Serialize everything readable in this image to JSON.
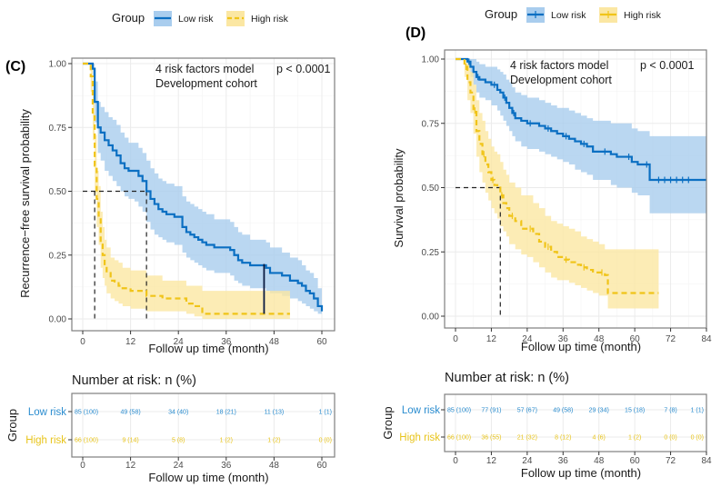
{
  "colors": {
    "low_line": "#0b6fc2",
    "low_band": "#a9cdee",
    "high_line": "#f0c419",
    "high_band": "#fbe7a3",
    "low_text": "#2a8ccf",
    "high_text": "#e8c41b",
    "grid": "#ebebeb",
    "frame": "#7f7f7f"
  },
  "chart_data": [
    {
      "id": "C",
      "type": "line",
      "panel_label": "(C)",
      "title": "",
      "legend": {
        "title": "Group",
        "entries": [
          "Low risk",
          "High risk"
        ],
        "placement": "top"
      },
      "annotation_model": "4 risk factors model",
      "annotation_cohort": "Development cohort",
      "p_value": "p < 0.0001",
      "xlabel": "Follow up time (month)",
      "ylabel": "Recurrence−free survival probability",
      "xlim": [
        0,
        60
      ],
      "ylim": [
        0,
        1
      ],
      "xticks": [
        0,
        12,
        24,
        36,
        48,
        60
      ],
      "yticks": [
        0,
        0.25,
        0.5,
        0.75,
        1.0
      ],
      "ytick_labels": [
        "0.00",
        "0.25",
        "0.50",
        "0.75",
        "1.00"
      ],
      "median_lines": [
        3,
        16
      ],
      "series": [
        {
          "name": "Low risk",
          "style": "solid",
          "x": [
            0,
            1.5,
            2.5,
            3,
            3.8,
            4.5,
            5.5,
            6.5,
            7.5,
            8.5,
            9.5,
            10.5,
            11.5,
            13,
            14,
            15,
            16,
            17,
            18,
            19,
            20,
            21,
            23,
            24,
            25,
            26,
            27,
            28,
            29,
            30,
            31,
            33,
            35,
            36,
            37,
            38,
            39,
            40,
            42,
            44,
            46,
            47,
            48,
            50,
            52,
            54,
            55,
            56,
            57,
            58,
            59,
            60
          ],
          "y": [
            1.0,
            1.0,
            0.98,
            0.85,
            0.75,
            0.73,
            0.7,
            0.68,
            0.66,
            0.64,
            0.61,
            0.59,
            0.58,
            0.58,
            0.56,
            0.54,
            0.5,
            0.47,
            0.45,
            0.43,
            0.42,
            0.41,
            0.4,
            0.4,
            0.36,
            0.34,
            0.33,
            0.32,
            0.31,
            0.3,
            0.29,
            0.28,
            0.28,
            0.28,
            0.27,
            0.25,
            0.23,
            0.22,
            0.21,
            0.21,
            0.2,
            0.18,
            0.18,
            0.17,
            0.15,
            0.14,
            0.13,
            0.11,
            0.1,
            0.08,
            0.05,
            0.03
          ],
          "lower": [
            1.0,
            1.0,
            0.95,
            0.77,
            0.65,
            0.62,
            0.58,
            0.56,
            0.54,
            0.52,
            0.5,
            0.48,
            0.47,
            0.46,
            0.44,
            0.42,
            0.38,
            0.35,
            0.33,
            0.32,
            0.31,
            0.3,
            0.29,
            0.29,
            0.26,
            0.24,
            0.23,
            0.22,
            0.21,
            0.2,
            0.19,
            0.18,
            0.18,
            0.18,
            0.17,
            0.15,
            0.14,
            0.13,
            0.12,
            0.12,
            0.11,
            0.1,
            0.1,
            0.09,
            0.08,
            0.07,
            0.06,
            0.05,
            0.04,
            0.03,
            0.02,
            0.01
          ],
          "upper": [
            1.0,
            1.0,
            1.0,
            0.93,
            0.85,
            0.83,
            0.81,
            0.79,
            0.78,
            0.76,
            0.73,
            0.71,
            0.69,
            0.69,
            0.67,
            0.65,
            0.62,
            0.59,
            0.57,
            0.55,
            0.54,
            0.53,
            0.52,
            0.52,
            0.48,
            0.46,
            0.45,
            0.44,
            0.43,
            0.42,
            0.41,
            0.39,
            0.39,
            0.39,
            0.38,
            0.36,
            0.34,
            0.33,
            0.31,
            0.31,
            0.3,
            0.28,
            0.28,
            0.26,
            0.24,
            0.23,
            0.21,
            0.19,
            0.18,
            0.16,
            0.12,
            0.08
          ]
        },
        {
          "name": "High risk",
          "style": "dashed",
          "x": [
            0,
            1.5,
            2,
            2.5,
            3,
            3.5,
            4,
            4.5,
            5,
            5.5,
            6,
            7,
            8,
            9,
            10,
            12,
            14,
            16,
            18,
            20,
            22,
            24,
            26,
            28,
            30,
            52
          ],
          "y": [
            1.0,
            1.0,
            0.95,
            0.8,
            0.6,
            0.47,
            0.4,
            0.3,
            0.25,
            0.21,
            0.18,
            0.15,
            0.14,
            0.13,
            0.12,
            0.11,
            0.11,
            0.09,
            0.09,
            0.08,
            0.08,
            0.08,
            0.06,
            0.05,
            0.02,
            0.02
          ],
          "lower": [
            1.0,
            1.0,
            0.89,
            0.7,
            0.49,
            0.36,
            0.29,
            0.2,
            0.16,
            0.13,
            0.1,
            0.08,
            0.07,
            0.06,
            0.05,
            0.04,
            0.04,
            0.03,
            0.03,
            0.03,
            0.03,
            0.03,
            0.02,
            0.01,
            0.0,
            0.0
          ],
          "upper": [
            1.0,
            1.0,
            1.0,
            0.88,
            0.72,
            0.58,
            0.52,
            0.42,
            0.36,
            0.31,
            0.28,
            0.24,
            0.23,
            0.22,
            0.2,
            0.19,
            0.19,
            0.17,
            0.17,
            0.15,
            0.15,
            0.15,
            0.13,
            0.13,
            0.11,
            0.11
          ]
        }
      ],
      "risk_table": {
        "title": "Number at risk: n (%)",
        "ylabel": "Group",
        "xlabel": "Follow up time (month)",
        "times": [
          0,
          12,
          24,
          36,
          48,
          60
        ],
        "rows": [
          {
            "group": "Low risk",
            "values": [
              "85 (100)",
              "49 (58)",
              "34 (40)",
              "18 (21)",
              "11 (13)",
              "1 (1)"
            ]
          },
          {
            "group": "High risk",
            "values": [
              "66 (100)",
              "9 (14)",
              "5 (8)",
              "1 (2)",
              "1 (2)",
              "0 (0)"
            ]
          }
        ]
      }
    },
    {
      "id": "D",
      "type": "line",
      "panel_label": "(D)",
      "title": "",
      "legend": {
        "title": "Group",
        "entries": [
          "Low risk",
          "High risk"
        ],
        "placement": "top"
      },
      "annotation_model": "4 risk factors model",
      "annotation_cohort": "Development cohort",
      "p_value": "p < 0.0001",
      "xlabel": "Follow up time (month)",
      "ylabel": "Survival probability",
      "xlim": [
        0,
        84
      ],
      "ylim": [
        0,
        1
      ],
      "xticks": [
        0,
        12,
        24,
        36,
        48,
        60,
        72,
        84
      ],
      "yticks": [
        0,
        0.25,
        0.5,
        0.75,
        1.0
      ],
      "ytick_labels": [
        "0.00",
        "0.25",
        "0.50",
        "0.75",
        "1.00"
      ],
      "median_lines": [
        15
      ],
      "series": [
        {
          "name": "Low risk",
          "style": "solid",
          "censor_marks": true,
          "x": [
            0,
            2,
            4,
            5,
            6,
            7,
            8,
            10,
            12,
            14,
            15,
            16,
            17,
            18,
            19,
            20,
            22,
            24,
            26,
            28,
            30,
            32,
            34,
            36,
            38,
            40,
            42,
            44,
            46,
            48,
            52,
            54,
            57,
            59,
            61,
            63,
            65,
            84
          ],
          "y": [
            1.0,
            1.0,
            0.99,
            0.97,
            0.95,
            0.93,
            0.92,
            0.91,
            0.9,
            0.88,
            0.87,
            0.85,
            0.83,
            0.81,
            0.79,
            0.77,
            0.76,
            0.75,
            0.75,
            0.74,
            0.73,
            0.72,
            0.71,
            0.7,
            0.69,
            0.68,
            0.67,
            0.66,
            0.64,
            0.64,
            0.63,
            0.62,
            0.62,
            0.6,
            0.59,
            0.59,
            0.53,
            0.53
          ],
          "lower": [
            1.0,
            1.0,
            0.97,
            0.93,
            0.9,
            0.87,
            0.85,
            0.84,
            0.82,
            0.8,
            0.78,
            0.76,
            0.74,
            0.72,
            0.7,
            0.68,
            0.66,
            0.65,
            0.65,
            0.64,
            0.63,
            0.62,
            0.61,
            0.6,
            0.59,
            0.57,
            0.56,
            0.55,
            0.53,
            0.53,
            0.51,
            0.5,
            0.5,
            0.48,
            0.47,
            0.47,
            0.4,
            0.4
          ],
          "upper": [
            1.0,
            1.0,
            1.0,
            1.0,
            1.0,
            0.99,
            0.98,
            0.97,
            0.97,
            0.96,
            0.95,
            0.94,
            0.92,
            0.91,
            0.89,
            0.87,
            0.86,
            0.85,
            0.85,
            0.84,
            0.83,
            0.82,
            0.81,
            0.81,
            0.8,
            0.79,
            0.78,
            0.77,
            0.76,
            0.76,
            0.75,
            0.75,
            0.75,
            0.73,
            0.72,
            0.72,
            0.7,
            0.7
          ]
        },
        {
          "name": "High risk",
          "style": "dashed",
          "censor_marks": true,
          "x": [
            0,
            2,
            3,
            4,
            5,
            6,
            7,
            8,
            9,
            10,
            11,
            12,
            13,
            14,
            15,
            16,
            17,
            18,
            20,
            22,
            24,
            26,
            28,
            30,
            32,
            34,
            36,
            38,
            40,
            42,
            44,
            46,
            48,
            50,
            51,
            68
          ],
          "y": [
            1.0,
            1.0,
            0.97,
            0.91,
            0.87,
            0.8,
            0.72,
            0.67,
            0.63,
            0.59,
            0.56,
            0.53,
            0.51,
            0.5,
            0.47,
            0.44,
            0.42,
            0.39,
            0.37,
            0.34,
            0.34,
            0.32,
            0.29,
            0.27,
            0.25,
            0.23,
            0.22,
            0.21,
            0.2,
            0.19,
            0.18,
            0.17,
            0.17,
            0.16,
            0.09,
            0.09
          ],
          "lower": [
            1.0,
            1.0,
            0.93,
            0.84,
            0.79,
            0.71,
            0.62,
            0.56,
            0.52,
            0.48,
            0.45,
            0.42,
            0.4,
            0.38,
            0.35,
            0.33,
            0.31,
            0.28,
            0.26,
            0.24,
            0.23,
            0.21,
            0.19,
            0.17,
            0.15,
            0.14,
            0.14,
            0.13,
            0.12,
            0.11,
            0.1,
            0.09,
            0.08,
            0.08,
            0.03,
            0.03
          ],
          "upper": [
            1.0,
            1.0,
            1.0,
            0.98,
            0.95,
            0.9,
            0.84,
            0.79,
            0.76,
            0.72,
            0.69,
            0.66,
            0.64,
            0.63,
            0.6,
            0.57,
            0.55,
            0.52,
            0.5,
            0.47,
            0.47,
            0.44,
            0.42,
            0.39,
            0.37,
            0.36,
            0.35,
            0.34,
            0.33,
            0.31,
            0.3,
            0.29,
            0.28,
            0.26,
            0.26,
            0.26
          ]
        }
      ],
      "risk_table": {
        "title": "Number at risk: n (%)",
        "ylabel": "Group",
        "xlabel": "Follow up time (month)",
        "times": [
          0,
          12,
          24,
          36,
          48,
          60,
          72,
          84
        ],
        "rows": [
          {
            "group": "Low risk",
            "values": [
              "85 (100)",
              "77 (91)",
              "57 (67)",
              "49 (58)",
              "29 (34)",
              "15 (18)",
              "7 (8)",
              "1 (1)"
            ]
          },
          {
            "group": "High risk",
            "values": [
              "66 (100)",
              "36 (55)",
              "21 (32)",
              "8 (12)",
              "4 (6)",
              "1 (2)",
              "0 (0)",
              "0 (0)"
            ]
          }
        ]
      }
    }
  ]
}
